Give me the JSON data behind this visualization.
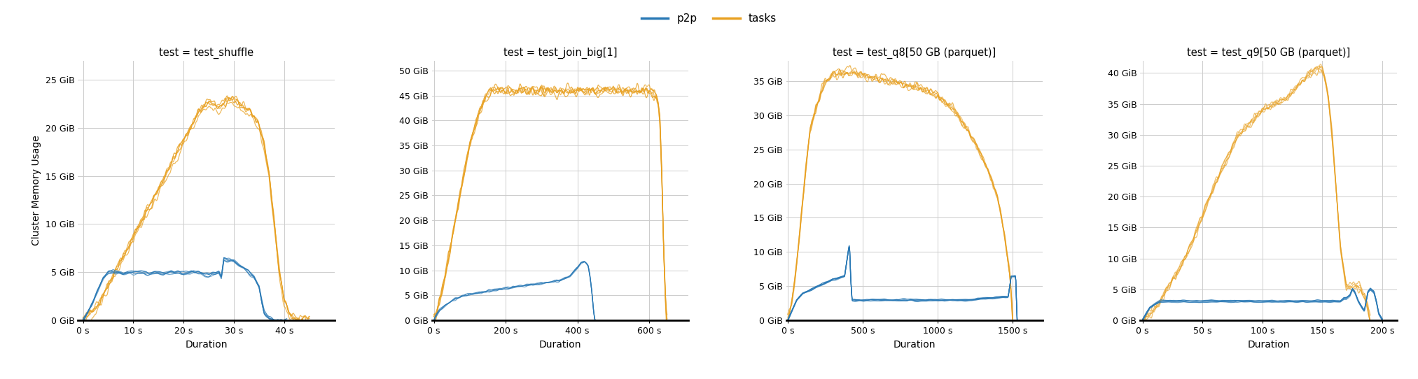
{
  "color_p2p": "#2878b5",
  "color_tasks": "#e8a020",
  "background_color": "#ffffff",
  "title_fontsize": 10.5,
  "axis_label_fontsize": 10,
  "tick_fontsize": 9,
  "legend_fontsize": 11,
  "ylabel": "Cluster Memory Usage",
  "xlabel": "Duration",
  "subplots": [
    {
      "title": "test = test_shuffle",
      "xlim": [
        -1,
        50
      ],
      "xticks": [
        0,
        10,
        20,
        30,
        40
      ],
      "xticklabels": [
        "0 s",
        "10 s",
        "20 s",
        "30 s",
        "40 s"
      ],
      "ylim": [
        0,
        27
      ],
      "yticks": [
        0,
        5,
        10,
        15,
        20,
        25
      ],
      "yticklabels": [
        "0 GiB",
        "5 GiB",
        "10 GiB",
        "15 GiB",
        "20 GiB",
        "25 GiB"
      ],
      "n_p2p": 5,
      "p2p_seed": 42,
      "p2p_noise": 0.3,
      "p2p_base": {
        "x": [
          0,
          2,
          4,
          5,
          6,
          7,
          8,
          9,
          10,
          11,
          12,
          13,
          14,
          15,
          16,
          17,
          18,
          19,
          20,
          21,
          22,
          23,
          24,
          25,
          26,
          27,
          27.5,
          28,
          29,
          30,
          31,
          32,
          33,
          34,
          35,
          35.5,
          36,
          37,
          38,
          38.5,
          39,
          39.5,
          40,
          40.5
        ],
        "y": [
          0,
          2,
          4.5,
          5.0,
          5.1,
          5.0,
          4.9,
          5.0,
          5.0,
          5.1,
          5.0,
          4.9,
          5.0,
          5.0,
          4.9,
          5.0,
          5.1,
          5.0,
          4.9,
          5.0,
          5.1,
          5.0,
          4.9,
          4.8,
          4.9,
          5.0,
          4.5,
          6.5,
          6.3,
          6.2,
          5.8,
          5.5,
          5.0,
          4.5,
          3.5,
          2.0,
          0.8,
          0.3,
          0.1,
          0.05,
          0.02,
          0.01,
          0,
          0
        ]
      },
      "n_tasks": 5,
      "tasks_seed": 10,
      "tasks_noise": 0.6,
      "tasks_base": {
        "x": [
          0,
          1,
          2,
          3,
          4,
          5,
          6,
          7,
          8,
          9,
          10,
          11,
          12,
          13,
          14,
          15,
          16,
          17,
          18,
          19,
          20,
          21,
          22,
          23,
          24,
          25,
          26,
          27,
          28,
          29,
          30,
          31,
          32,
          33,
          34,
          35,
          36,
          37,
          38,
          39,
          40,
          41,
          42,
          43,
          44,
          45
        ],
        "y": [
          0,
          0.3,
          0.8,
          1.5,
          2.5,
          3.5,
          4.5,
          5.5,
          6.5,
          7.5,
          8.5,
          9.5,
          10.5,
          11.5,
          12.5,
          13.5,
          14.5,
          15.5,
          16.5,
          17.5,
          18.5,
          19.5,
          20.5,
          21.5,
          22.0,
          22.5,
          22.3,
          22.0,
          22.5,
          22.8,
          23.0,
          22.5,
          22.0,
          21.5,
          21.0,
          20.0,
          18.0,
          15.0,
          10.0,
          5.0,
          2.0,
          0.5,
          0.1,
          0,
          0,
          0
        ]
      }
    },
    {
      "title": "test = test_join_big[1]",
      "xlim": [
        -5,
        710
      ],
      "xticks": [
        0,
        200,
        400,
        600
      ],
      "xticklabels": [
        "0 s",
        "200 s",
        "400 s",
        "600 s"
      ],
      "ylim": [
        0,
        52
      ],
      "yticks": [
        0,
        5,
        10,
        15,
        20,
        25,
        30,
        35,
        40,
        45,
        50
      ],
      "yticklabels": [
        "0 GiB",
        "5 GiB",
        "10 GiB",
        "15 GiB",
        "20 GiB",
        "25 GiB",
        "30 GiB",
        "35 GiB",
        "40 GiB",
        "45 GiB",
        "50 GiB"
      ],
      "n_p2p": 4,
      "p2p_seed": 7,
      "p2p_noise": 0.3,
      "p2p_base": {
        "x": [
          0,
          5,
          15,
          30,
          50,
          80,
          120,
          160,
          200,
          250,
          300,
          350,
          380,
          400,
          410,
          420,
          425,
          430,
          435,
          440,
          445,
          448,
          450
        ],
        "y": [
          0,
          1,
          2,
          3,
          4,
          5,
          5.5,
          6,
          6.5,
          7,
          7.5,
          8,
          9,
          10.5,
          11.5,
          11.8,
          11.5,
          11.0,
          9.0,
          6.0,
          2.0,
          0.5,
          0
        ]
      },
      "n_tasks": 5,
      "tasks_seed": 20,
      "tasks_noise": 1.5,
      "tasks_base": {
        "x": [
          0,
          10,
          20,
          40,
          60,
          80,
          100,
          120,
          140,
          160,
          180,
          200,
          220,
          250,
          300,
          350,
          400,
          450,
          500,
          550,
          600,
          620,
          625,
          630,
          635,
          640,
          645,
          648,
          650
        ],
        "y": [
          0,
          2,
          5,
          12,
          20,
          28,
          35,
          40,
          44,
          46,
          46,
          46,
          46,
          46,
          46,
          46,
          46,
          46,
          46,
          46,
          46,
          45,
          43,
          40,
          30,
          15,
          5,
          1,
          0
        ]
      }
    },
    {
      "title": "test = test_q8[50 GB (parquet)]",
      "xlim": [
        -10,
        1700
      ],
      "xticks": [
        0,
        500,
        1000,
        1500
      ],
      "xticklabels": [
        "0 s",
        "500 s",
        "1000 s",
        "1500 s"
      ],
      "ylim": [
        0,
        38
      ],
      "yticks": [
        0,
        5,
        10,
        15,
        20,
        25,
        30,
        35
      ],
      "yticklabels": [
        "0 GiB",
        "5 GiB",
        "10 GiB",
        "15 GiB",
        "20 GiB",
        "25 GiB",
        "30 GiB",
        "35 GiB"
      ],
      "n_p2p": 5,
      "p2p_seed": 3,
      "p2p_noise": 0.2,
      "p2p_base": {
        "x": [
          0,
          30,
          60,
          100,
          150,
          200,
          250,
          300,
          380,
          410,
          415,
          420,
          425,
          430,
          800,
          1200,
          1470,
          1490,
          1500,
          1510,
          1520,
          1525,
          1530
        ],
        "y": [
          0,
          1.5,
          3,
          4,
          4.5,
          5,
          5.5,
          6,
          6.5,
          11,
          10,
          6.5,
          4.5,
          3,
          3,
          3,
          3.5,
          6.5,
          6.5,
          6.5,
          6.5,
          3,
          0
        ]
      },
      "n_tasks": 5,
      "tasks_seed": 55,
      "tasks_noise": 0.8,
      "tasks_base": {
        "x": [
          0,
          30,
          60,
          90,
          120,
          150,
          200,
          250,
          300,
          400,
          500,
          600,
          700,
          800,
          900,
          1000,
          1100,
          1200,
          1300,
          1400,
          1450,
          1480,
          1490,
          1495,
          1500
        ],
        "y": [
          0,
          3,
          8,
          15,
          22,
          28,
          32,
          35,
          36,
          36.5,
          36,
          35.5,
          35,
          34.5,
          34,
          33,
          31,
          28,
          24,
          18,
          12,
          7,
          4,
          2,
          0
        ]
      }
    },
    {
      "title": "test = test_q9[50 GB (parquet)]",
      "xlim": [
        -2,
        212
      ],
      "xticks": [
        0,
        50,
        100,
        150,
        200
      ],
      "xticklabels": [
        "0 s",
        "50 s",
        "100 s",
        "150 s",
        "200 s"
      ],
      "ylim": [
        0,
        42
      ],
      "yticks": [
        0,
        5,
        10,
        15,
        20,
        25,
        30,
        35,
        40
      ],
      "yticklabels": [
        "0 GiB",
        "5 GiB",
        "10 GiB",
        "15 GiB",
        "20 GiB",
        "25 GiB",
        "30 GiB",
        "35 GiB",
        "40 GiB"
      ],
      "n_p2p": 5,
      "p2p_seed": 8,
      "p2p_noise": 0.15,
      "p2p_base": {
        "x": [
          0,
          3,
          6,
          10,
          15,
          20,
          30,
          50,
          70,
          90,
          110,
          130,
          150,
          155,
          160,
          165,
          168,
          170,
          173,
          175,
          177,
          180,
          183,
          185,
          188,
          190,
          193,
          195,
          197,
          200
        ],
        "y": [
          0,
          1,
          2,
          2.5,
          3,
          3,
          3,
          3,
          3,
          3,
          3,
          3,
          3,
          3,
          3,
          3,
          3.5,
          3.5,
          4,
          5,
          4.5,
          3,
          2,
          1.5,
          4.5,
          5,
          4.5,
          3,
          1,
          0
        ]
      },
      "n_tasks": 5,
      "tasks_seed": 15,
      "tasks_noise": 0.8,
      "tasks_base": {
        "x": [
          0,
          3,
          6,
          10,
          15,
          20,
          30,
          40,
          50,
          60,
          70,
          80,
          90,
          100,
          110,
          120,
          130,
          140,
          148,
          150,
          152,
          155,
          158,
          160,
          162,
          165,
          168,
          170,
          172,
          175,
          178,
          180,
          182,
          185,
          188,
          190
        ],
        "y": [
          0,
          0.5,
          1,
          2,
          3,
          5,
          8,
          12,
          17,
          22,
          26,
          30,
          32,
          34,
          35,
          36,
          38,
          40,
          41,
          40.5,
          39,
          36,
          30,
          25,
          20,
          12,
          8,
          5.5,
          5.5,
          5.5,
          5.5,
          5.5,
          5,
          4,
          2,
          0
        ]
      }
    }
  ]
}
